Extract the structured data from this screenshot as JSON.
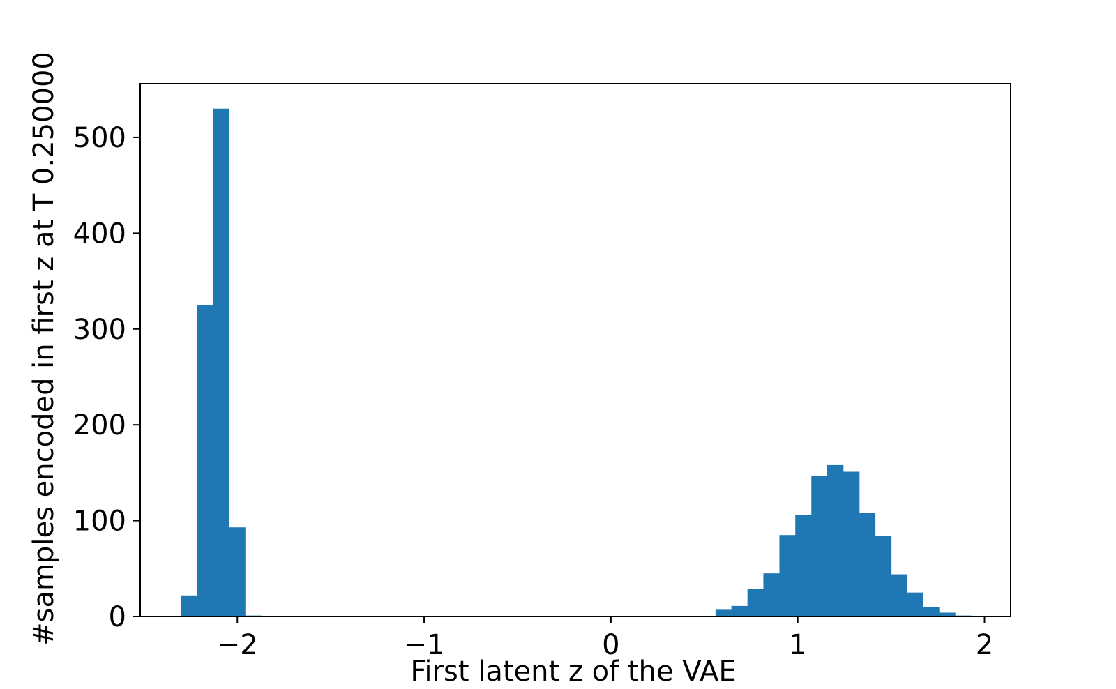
{
  "chart_data": {
    "type": "bar",
    "xlabel": "First latent z of the VAE",
    "ylabel": "#samples encoded in first z at T 0.250000",
    "xlim": [
      -2.52,
      2.14
    ],
    "ylim": [
      0,
      556
    ],
    "x_ticks": [
      {
        "value": -2,
        "label": "−2"
      },
      {
        "value": -1,
        "label": "−1"
      },
      {
        "value": 0,
        "label": "0"
      },
      {
        "value": 1,
        "label": "1"
      },
      {
        "value": 2,
        "label": "2"
      }
    ],
    "y_ticks": [
      {
        "value": 0,
        "label": "0"
      },
      {
        "value": 100,
        "label": "100"
      },
      {
        "value": 200,
        "label": "200"
      },
      {
        "value": 300,
        "label": "300"
      },
      {
        "value": 400,
        "label": "400"
      },
      {
        "value": 500,
        "label": "500"
      }
    ],
    "grid": false,
    "bin_width": 0.0855,
    "bins": [
      {
        "x0": -2.3,
        "count": 22
      },
      {
        "x0": -2.215,
        "count": 325
      },
      {
        "x0": -2.129,
        "count": 530
      },
      {
        "x0": -2.044,
        "count": 93
      },
      {
        "x0": -1.958,
        "count": 1
      },
      {
        "x0": 0.56,
        "count": 7
      },
      {
        "x0": 0.645,
        "count": 11
      },
      {
        "x0": 0.731,
        "count": 29
      },
      {
        "x0": 0.816,
        "count": 45
      },
      {
        "x0": 0.902,
        "count": 85
      },
      {
        "x0": 0.987,
        "count": 106
      },
      {
        "x0": 1.073,
        "count": 147
      },
      {
        "x0": 1.158,
        "count": 158
      },
      {
        "x0": 1.244,
        "count": 151
      },
      {
        "x0": 1.329,
        "count": 108
      },
      {
        "x0": 1.415,
        "count": 84
      },
      {
        "x0": 1.5,
        "count": 44
      },
      {
        "x0": 1.586,
        "count": 25
      },
      {
        "x0": 1.671,
        "count": 10
      },
      {
        "x0": 1.757,
        "count": 4
      },
      {
        "x0": 1.842,
        "count": 1
      }
    ],
    "colors": {
      "bar": "#1f77b4",
      "axes": "#000000"
    }
  }
}
